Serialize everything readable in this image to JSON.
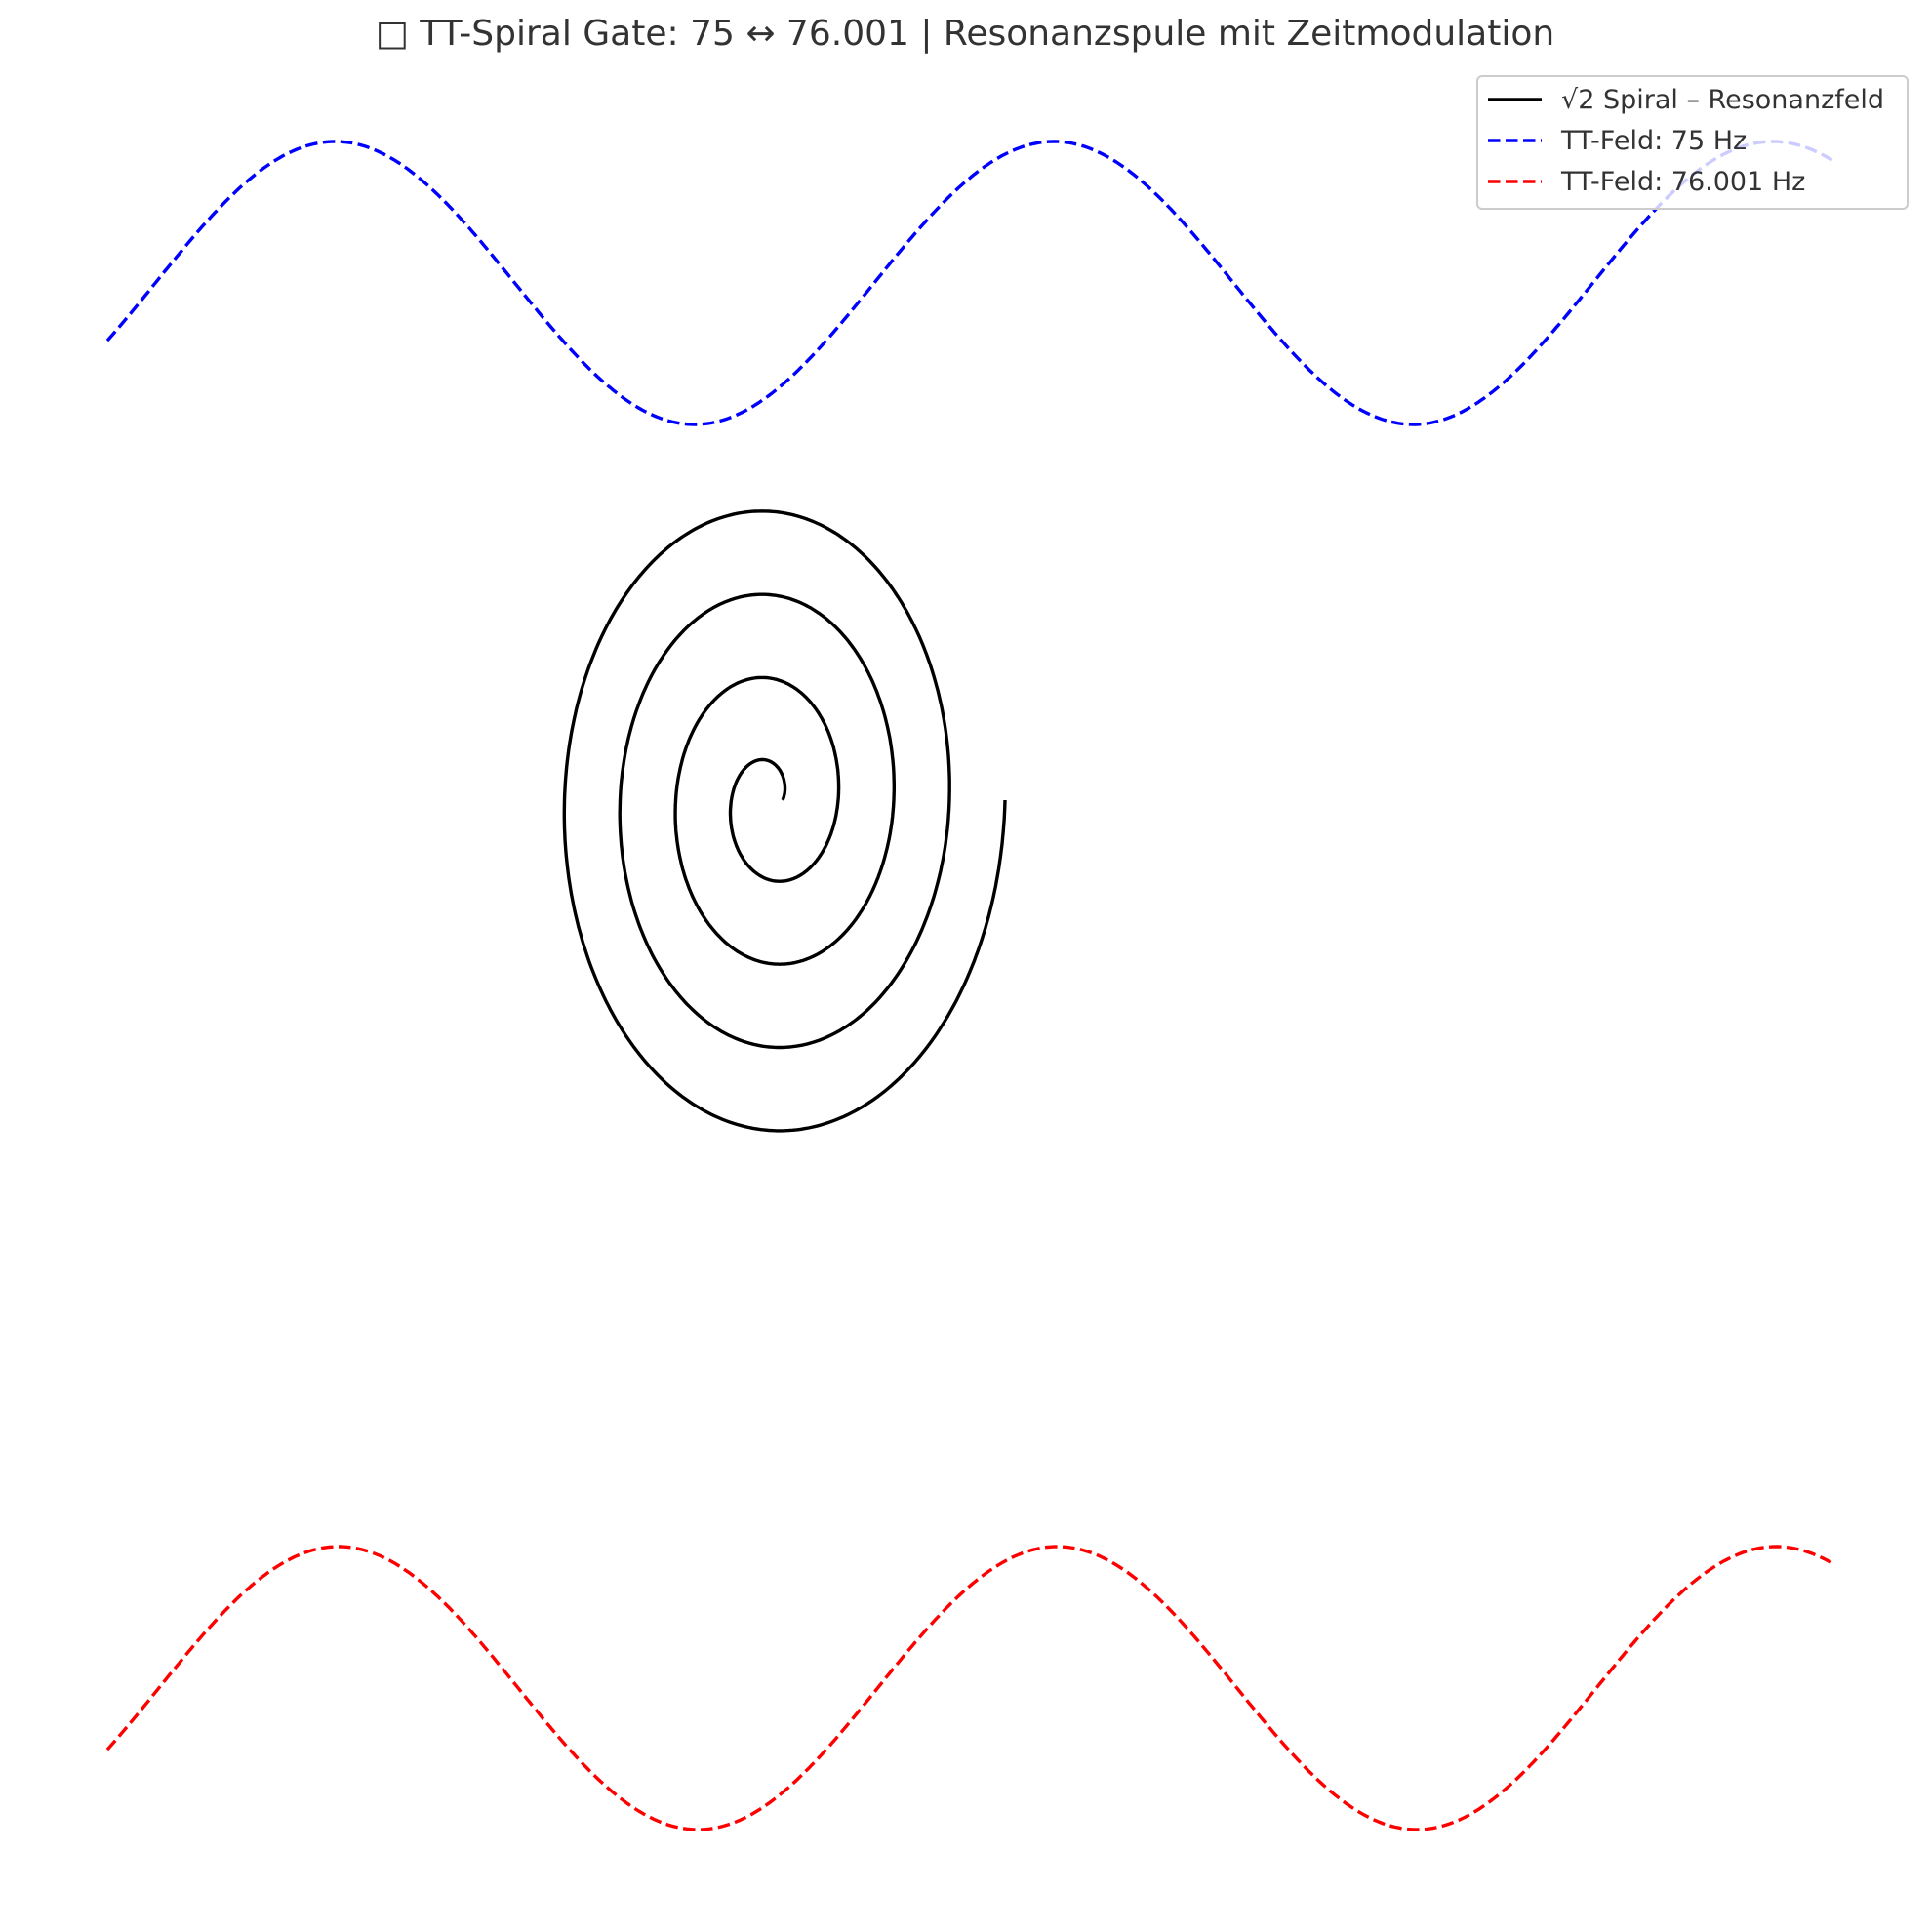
{
  "chart_data": {
    "type": "line",
    "title": "□ TT-Spiral Gate: 75 ↔ 76.001 | Resonanzspule mit Zeitmodulation",
    "axes_visible": false,
    "grid": false,
    "legend_position": "top-right",
    "colors": {
      "spiral": "#000000",
      "f75": "#0000ff",
      "f76": "#ff0000"
    },
    "series": [
      {
        "name": "√2 Spiral – Resonanzfeld",
        "kind": "spiral",
        "color": "#000000",
        "linestyle": "solid",
        "turns": 4,
        "x_scale": 1.0,
        "y_scale": 1.4142,
        "r_start": 0.05,
        "r_end": 1.0
      },
      {
        "name": "TT-Feld: 75 Hz",
        "kind": "sine",
        "color": "#0000ff",
        "linestyle": "dashed",
        "frequency_hz": 75,
        "offset": 1.5,
        "amplitude": 0.3
      },
      {
        "name": "TT-Feld: 76.001 Hz",
        "kind": "sine",
        "color": "#ff0000",
        "linestyle": "dashed",
        "frequency_hz": 76.001,
        "offset": -1.5,
        "amplitude": 0.3
      }
    ]
  }
}
